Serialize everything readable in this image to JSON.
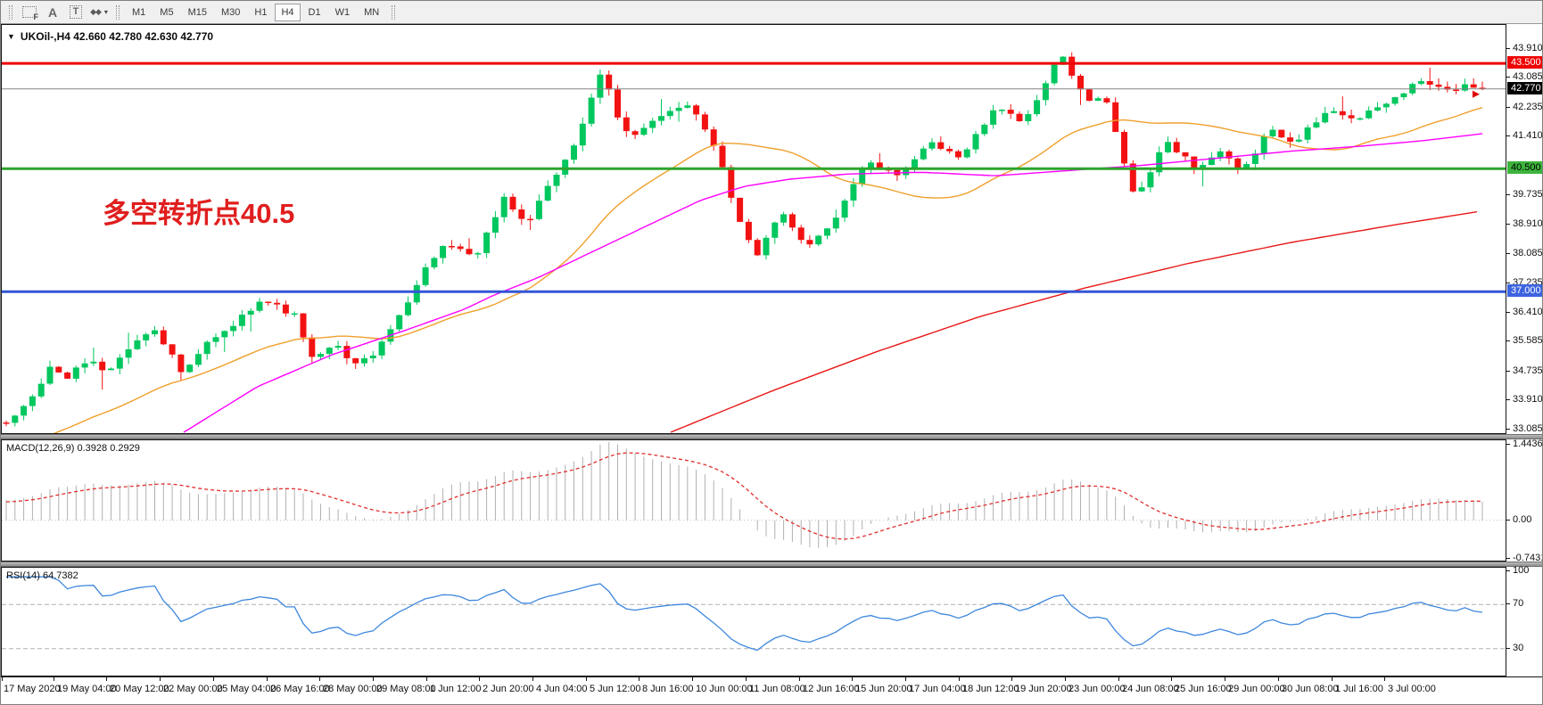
{
  "toolbar": {
    "tools": [
      {
        "name": "fibo-grid",
        "glyph": "F"
      },
      {
        "name": "text",
        "glyph": "A"
      },
      {
        "name": "text-label",
        "glyph": "T"
      },
      {
        "name": "arrows",
        "glyph": "◆◆"
      }
    ],
    "timeframes": [
      "M1",
      "M5",
      "M15",
      "M30",
      "H1",
      "H4",
      "D1",
      "W1",
      "MN"
    ],
    "active_timeframe": "H4"
  },
  "chart": {
    "symbol_line": "UKOil-,H4 42.660 42.780 42.630 42.770",
    "annotation": {
      "text": "多空转折点40.5",
      "color": "#e01e1e"
    }
  },
  "chart_data": {
    "type": "candlestick",
    "symbol": "UKOil-",
    "timeframe": "H4",
    "ohlc": {
      "open": 42.66,
      "high": 42.78,
      "low": 42.63,
      "close": 42.77
    },
    "ylim": [
      32.975,
      44.592
    ],
    "y_ticks": [
      43.91,
      43.085,
      42.235,
      41.41,
      39.735,
      38.91,
      38.085,
      37.235,
      36.41,
      35.585,
      34.735,
      33.91,
      33.085
    ],
    "levels": [
      {
        "value": 43.5,
        "color": "#ee0202",
        "width": 3,
        "badge_bg": "#ee0202",
        "badge_fg": "#ffffff",
        "role": "resistance-line"
      },
      {
        "value": 42.77,
        "color": "#848484",
        "width": 1,
        "badge_bg": "#000000",
        "badge_fg": "#ffffff",
        "role": "current-price"
      },
      {
        "value": 40.5,
        "color": "#2ca42c",
        "width": 3,
        "badge_bg": "#3cb43c",
        "badge_fg": "#000000",
        "role": "pivot-line"
      },
      {
        "value": 37.0,
        "color": "#3356d8",
        "width": 3,
        "badge_bg": "#3d63e0",
        "badge_fg": "#ffffff",
        "role": "support-line"
      }
    ],
    "colors": {
      "bull": "#00c75e",
      "bear": "#f21212",
      "ma_fast": "#efa02c",
      "ma_mid": "#ff00ff",
      "ma_slow": "#e81818",
      "macd_hist": "#b0b0b0",
      "macd_signal": "#e03030",
      "rsi_line": "#3d87dd",
      "rsi_levels": "#b0b0b0"
    },
    "num_candles": 170,
    "price_waypoints": [
      [
        0.003,
        33.3
      ],
      [
        0.012,
        33.7
      ],
      [
        0.03,
        34.85
      ],
      [
        0.042,
        34.55
      ],
      [
        0.055,
        35.1
      ],
      [
        0.068,
        34.7
      ],
      [
        0.082,
        35.35
      ],
      [
        0.1,
        36.0
      ],
      [
        0.112,
        35.2
      ],
      [
        0.12,
        34.6
      ],
      [
        0.135,
        35.5
      ],
      [
        0.15,
        35.9
      ],
      [
        0.16,
        36.3
      ],
      [
        0.172,
        36.8
      ],
      [
        0.185,
        36.55
      ],
      [
        0.196,
        36.3
      ],
      [
        0.208,
        35.0
      ],
      [
        0.222,
        35.5
      ],
      [
        0.238,
        34.9
      ],
      [
        0.253,
        35.4
      ],
      [
        0.27,
        36.6
      ],
      [
        0.283,
        37.6
      ],
      [
        0.295,
        38.3
      ],
      [
        0.319,
        38.0
      ],
      [
        0.337,
        39.7
      ],
      [
        0.352,
        38.9
      ],
      [
        0.365,
        39.8
      ],
      [
        0.386,
        41.3
      ],
      [
        0.404,
        43.3
      ],
      [
        0.416,
        41.7
      ],
      [
        0.425,
        41.5
      ],
      [
        0.44,
        41.9
      ],
      [
        0.464,
        42.35
      ],
      [
        0.482,
        41.0
      ],
      [
        0.494,
        39.3
      ],
      [
        0.509,
        38.0
      ],
      [
        0.524,
        39.3
      ],
      [
        0.542,
        38.2
      ],
      [
        0.56,
        39.0
      ],
      [
        0.582,
        40.7
      ],
      [
        0.602,
        40.3
      ],
      [
        0.627,
        41.2
      ],
      [
        0.645,
        40.8
      ],
      [
        0.672,
        42.3
      ],
      [
        0.69,
        41.8
      ],
      [
        0.714,
        43.78
      ],
      [
        0.732,
        42.4
      ],
      [
        0.744,
        42.55
      ],
      [
        0.765,
        39.6
      ],
      [
        0.786,
        41.3
      ],
      [
        0.807,
        40.5
      ],
      [
        0.822,
        41.0
      ],
      [
        0.837,
        40.35
      ],
      [
        0.855,
        41.6
      ],
      [
        0.873,
        41.3
      ],
      [
        0.898,
        42.2
      ],
      [
        0.916,
        41.9
      ],
      [
        0.94,
        42.5
      ],
      [
        0.958,
        43.0
      ],
      [
        0.976,
        42.7
      ],
      [
        0.991,
        42.9
      ],
      [
        1.0,
        42.77
      ]
    ],
    "ma_mid_waypoints": [
      [
        0.12,
        33.0
      ],
      [
        0.17,
        34.3
      ],
      [
        0.22,
        35.2
      ],
      [
        0.27,
        35.9
      ],
      [
        0.31,
        36.5
      ],
      [
        0.33,
        36.9
      ],
      [
        0.36,
        37.4
      ],
      [
        0.4,
        38.2
      ],
      [
        0.44,
        39.0
      ],
      [
        0.47,
        39.6
      ],
      [
        0.5,
        40.0
      ],
      [
        0.53,
        40.2
      ],
      [
        0.57,
        40.35
      ],
      [
        0.62,
        40.4
      ],
      [
        0.67,
        40.3
      ],
      [
        0.72,
        40.45
      ],
      [
        0.77,
        40.6
      ],
      [
        0.82,
        40.8
      ],
      [
        0.87,
        41.0
      ],
      [
        0.92,
        41.15
      ],
      [
        0.96,
        41.3
      ],
      [
        1.0,
        41.5
      ]
    ],
    "ma_slow_waypoints": [
      [
        0.45,
        33.0
      ],
      [
        0.52,
        34.2
      ],
      [
        0.59,
        35.3
      ],
      [
        0.66,
        36.3
      ],
      [
        0.73,
        37.1
      ],
      [
        0.8,
        37.8
      ],
      [
        0.87,
        38.4
      ],
      [
        0.94,
        38.9
      ],
      [
        1.0,
        39.3
      ]
    ],
    "x_labels": [
      "17 May 2020",
      "19 May 04:00",
      "20 May 12:00",
      "22 May 00:00",
      "25 May 04:00",
      "26 May 16:00",
      "28 May 00:00",
      "29 May 08:00",
      "1 Jun 12:00",
      "2 Jun 20:00",
      "4 Jun 04:00",
      "5 Jun 12:00",
      "8 Jun 16:00",
      "10 Jun 00:00",
      "11 Jun 08:00",
      "12 Jun 16:00",
      "15 Jun 20:00",
      "17 Jun 04:00",
      "18 Jun 12:00",
      "19 Jun 20:00",
      "23 Jun 00:00",
      "24 Jun 08:00",
      "25 Jun 16:00",
      "29 Jun 00:00",
      "30 Jun 08:00",
      "1 Jul 16:00",
      "3 Jul 00:00"
    ],
    "macd": {
      "label": "MACD(12,26,9)",
      "value_main": "0.3928",
      "value_signal": "0.2929",
      "axis_ticks": [
        {
          "v": 1.4436,
          "label": "1.4436"
        },
        {
          "v": 0,
          "label": "0.00"
        },
        {
          "v": -0.7431,
          "label": "-0.7431"
        }
      ],
      "ylim": [
        -0.777,
        1.537
      ]
    },
    "rsi": {
      "label": "RSI(14)",
      "value": "64.7382",
      "axis_ticks": [
        {
          "v": 100,
          "label": "100"
        },
        {
          "v": 70,
          "label": "70"
        },
        {
          "v": 30,
          "label": "30"
        },
        {
          "v": 0,
          "label": "0"
        }
      ],
      "levels": [
        70,
        30
      ]
    }
  }
}
